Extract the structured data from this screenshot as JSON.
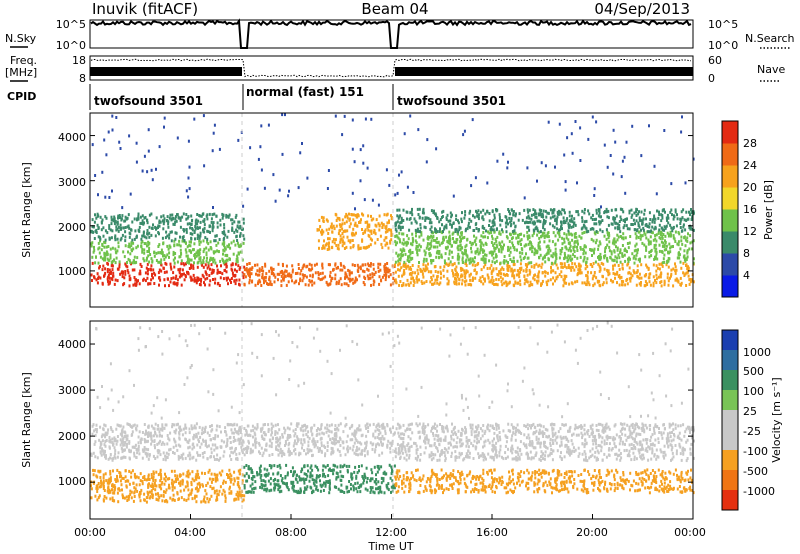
{
  "header": {
    "station": "Inuvik (fitACF)",
    "beam": "Beam 04",
    "date": "04/Sep/2013"
  },
  "strip_labels": {
    "nsky": "N.Sky",
    "freq": "Freq.",
    "freq_unit": "[MHz]",
    "cpid": "CPID",
    "nsearch": "N.Search",
    "nave": "Nave"
  },
  "strip_ticks": {
    "nsky_left": [
      "10^5",
      "10^0"
    ],
    "nsky_right": [
      "10^5",
      "10^0"
    ],
    "freq_left": [
      "18",
      "8"
    ],
    "nave_right": [
      "60",
      "0"
    ]
  },
  "cpid_segments": [
    {
      "label": "twofsound 3501",
      "start": 0,
      "end": 6.1
    },
    {
      "label": "normal (fast) 151",
      "start": 6.1,
      "end": 12.1
    },
    {
      "label": "twofsound 3501",
      "start": 12.1,
      "end": 24
    }
  ],
  "xaxis": {
    "label": "Time UT",
    "ticks": [
      "00:00",
      "04:00",
      "08:00",
      "12:00",
      "16:00",
      "20:00",
      "00:00"
    ]
  },
  "panels": {
    "power": {
      "ylabel": "Slant Range [km]",
      "yticks": [
        "1000",
        "2000",
        "3000",
        "4000"
      ],
      "cbar_label": "Power [dB]",
      "cbar_ticks": [
        "4",
        "8",
        "12",
        "16",
        "20",
        "24",
        "28"
      ],
      "cbar_colors": [
        "#0a1be6",
        "#2c4aa8",
        "#3a8a6a",
        "#6fc24a",
        "#f2d72a",
        "#f7a21c",
        "#f06a16",
        "#e32a12"
      ]
    },
    "velocity": {
      "ylabel": "Slant Range [km]",
      "yticks": [
        "1000",
        "2000",
        "3000",
        "4000"
      ],
      "cbar_label": "Velocity [m s⁻¹]",
      "cbar_ticks": [
        "1000",
        "500",
        "100",
        "25",
        "-25",
        "-100",
        "-500",
        "-1000"
      ],
      "cbar_colors": [
        "#1b3fb0",
        "#2f6ea0",
        "#3a9060",
        "#79c456",
        "#c8c8c8",
        "#c8c8c8",
        "#f5a020",
        "#f07514",
        "#e53010"
      ]
    }
  },
  "chart_data": [
    {
      "type": "line",
      "title": "N.Sky / N.Search",
      "x": [
        0,
        6.1,
        12.1,
        24
      ],
      "ylim": [
        1,
        100000
      ],
      "yscale": "log",
      "series": [
        {
          "values": [
            30000,
            30000,
            30000,
            30000
          ]
        }
      ]
    },
    {
      "type": "line",
      "title": "Freq. / Nave",
      "x": [
        0,
        6.1,
        12.1,
        24
      ],
      "series": [
        {
          "values": [
            10.5,
            10.5,
            10.5,
            10.5
          ]
        },
        {
          "values": [
            50,
            10,
            50,
            50
          ]
        }
      ]
    },
    {
      "type": "heatmap",
      "title": "Power [dB]",
      "xlim": [
        0,
        24
      ],
      "ylim": [
        200,
        4500
      ],
      "regions": [
        {
          "t": [
            0,
            6.1
          ],
          "range_km": [
            700,
            1200
          ],
          "value": 28
        },
        {
          "t": [
            0,
            6.1
          ],
          "range_km": [
            1200,
            1700
          ],
          "value": 14
        },
        {
          "t": [
            0,
            6.1
          ],
          "range_km": [
            1700,
            2300
          ],
          "value": 8
        },
        {
          "t": [
            6.1,
            12.1
          ],
          "range_km": [
            700,
            1200
          ],
          "value": 26
        },
        {
          "t": [
            9,
            12
          ],
          "range_km": [
            1500,
            2300
          ],
          "value": 22
        },
        {
          "t": [
            12.1,
            24
          ],
          "range_km": [
            700,
            1200
          ],
          "value": 22
        },
        {
          "t": [
            12.1,
            24
          ],
          "range_km": [
            1200,
            1900
          ],
          "value": 14
        },
        {
          "t": [
            12.1,
            24
          ],
          "range_km": [
            1900,
            2400
          ],
          "value": 8
        }
      ]
    },
    {
      "type": "heatmap",
      "title": "Velocity [m s⁻¹]",
      "xlim": [
        0,
        24
      ],
      "ylim": [
        200,
        4500
      ],
      "regions": [
        {
          "t": [
            0,
            6.1
          ],
          "range_km": [
            600,
            1300
          ],
          "value": -300
        },
        {
          "t": [
            0,
            6.1
          ],
          "range_km": [
            1500,
            2300
          ],
          "value": 0
        },
        {
          "t": [
            6.1,
            12.1
          ],
          "range_km": [
            800,
            1400
          ],
          "value": 200
        },
        {
          "t": [
            6.1,
            12.1
          ],
          "range_km": [
            1600,
            2300
          ],
          "value": 0
        },
        {
          "t": [
            12.1,
            24
          ],
          "range_km": [
            800,
            1300
          ],
          "value": -300
        },
        {
          "t": [
            12.1,
            24
          ],
          "range_km": [
            1500,
            2300
          ],
          "value": 0
        }
      ]
    }
  ]
}
